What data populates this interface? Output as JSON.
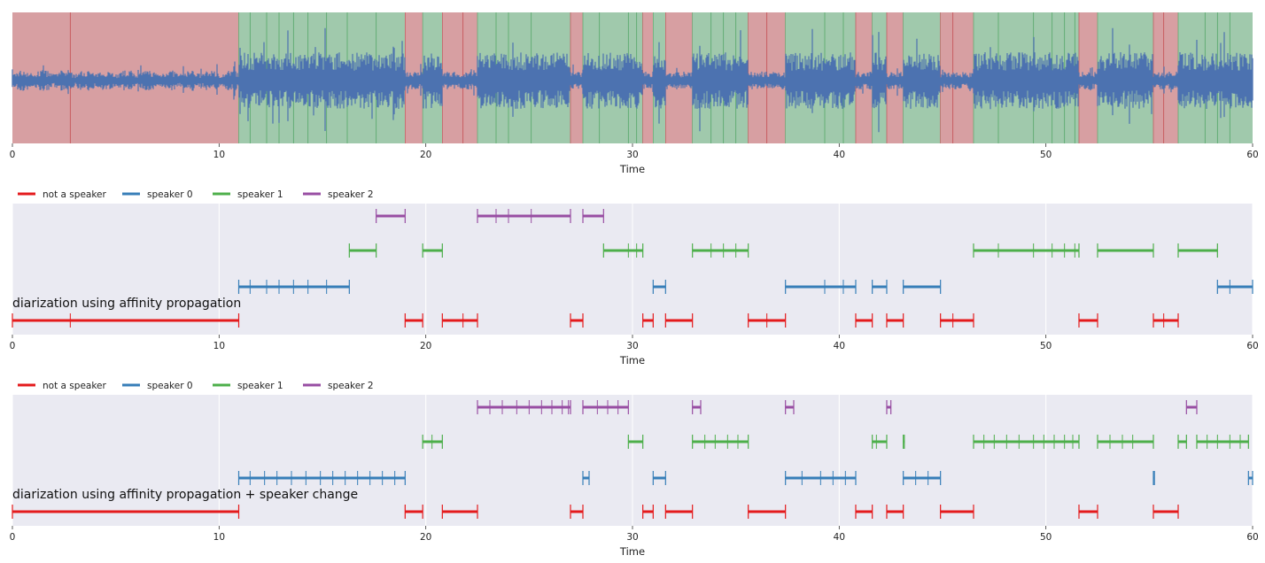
{
  "chart_data": [
    {
      "type": "waveform-segments",
      "xlabel": "Time",
      "xlim": [
        0,
        60
      ],
      "xticks": [
        0,
        10,
        20,
        30,
        40,
        50,
        60
      ],
      "colors": {
        "nonspeech": "#d79fa2",
        "speech": "#a0c9ac",
        "wave": "#4c72b0",
        "nonspeech_line": "#c44e52",
        "speech_line": "#55a868"
      },
      "nonspeech_segments": [
        [
          0,
          10.95
        ],
        [
          19.0,
          19.85
        ],
        [
          20.8,
          22.5
        ],
        [
          27.0,
          27.6
        ],
        [
          30.5,
          31.0
        ],
        [
          31.6,
          32.9
        ],
        [
          35.6,
          37.4
        ],
        [
          40.8,
          41.6
        ],
        [
          42.3,
          43.1
        ],
        [
          44.9,
          46.5
        ],
        [
          51.6,
          52.5
        ],
        [
          55.2,
          56.4
        ]
      ],
      "speech_segments": [
        [
          10.95,
          19.0
        ],
        [
          19.85,
          20.8
        ],
        [
          22.5,
          27.0
        ],
        [
          27.6,
          30.5
        ],
        [
          31.0,
          31.6
        ],
        [
          32.9,
          35.6
        ],
        [
          37.4,
          40.8
        ],
        [
          41.6,
          42.3
        ],
        [
          43.1,
          44.9
        ],
        [
          46.5,
          51.6
        ],
        [
          52.5,
          55.2
        ],
        [
          56.4,
          60
        ]
      ],
      "boundaries": [
        2.8,
        11.5,
        12.3,
        12.9,
        13.6,
        14.3,
        15.2,
        16.2,
        17.6,
        21.8,
        23.4,
        24.0,
        25.1,
        28.4,
        29.8,
        30.2,
        33.8,
        34.4,
        35.0,
        36.5,
        39.3,
        40.2,
        45.5,
        47.7,
        49.4,
        50.3,
        50.9,
        51.4,
        55.7,
        57.7,
        58.3,
        58.9
      ]
    },
    {
      "type": "timeline",
      "annotation": "diarization using affinity propagation",
      "xlabel": "Time",
      "xlim": [
        0,
        60
      ],
      "xticks": [
        0,
        10,
        20,
        30,
        40,
        50,
        60
      ],
      "legend": [
        "not a speaker",
        "speaker 0",
        "speaker 1",
        "speaker 2"
      ],
      "colors": [
        "#e41a1c",
        "#377eb8",
        "#4daf4a",
        "#984ea3"
      ],
      "series": [
        {
          "name": "not a speaker",
          "segments": [
            [
              0,
              10.95
            ],
            [
              19.0,
              19.85
            ],
            [
              20.8,
              22.5
            ],
            [
              27.0,
              27.6
            ],
            [
              30.5,
              31.0
            ],
            [
              31.6,
              32.9
            ],
            [
              35.6,
              37.4
            ],
            [
              40.8,
              41.6
            ],
            [
              42.3,
              43.1
            ],
            [
              44.9,
              46.5
            ],
            [
              51.6,
              52.5
            ],
            [
              55.2,
              56.4
            ]
          ],
          "ticks": [
            2.8,
            21.8,
            36.5,
            45.5,
            55.7
          ]
        },
        {
          "name": "speaker 0",
          "segments": [
            [
              10.95,
              16.3
            ],
            [
              31.0,
              31.6
            ],
            [
              37.4,
              40.8
            ],
            [
              41.6,
              42.3
            ],
            [
              43.1,
              44.9
            ],
            [
              58.3,
              60
            ]
          ],
          "ticks": [
            11.5,
            12.3,
            12.9,
            13.6,
            14.3,
            15.2,
            39.3,
            40.2,
            58.9
          ]
        },
        {
          "name": "speaker 1",
          "segments": [
            [
              16.3,
              17.6
            ],
            [
              19.85,
              20.8
            ],
            [
              28.6,
              30.5
            ],
            [
              32.9,
              35.6
            ],
            [
              46.5,
              51.6
            ],
            [
              52.5,
              55.2
            ],
            [
              56.4,
              58.3
            ]
          ],
          "ticks": [
            29.8,
            30.2,
            33.8,
            34.4,
            35.0,
            47.7,
            49.4,
            50.3,
            50.9,
            51.4
          ]
        },
        {
          "name": "speaker 2",
          "segments": [
            [
              17.6,
              19.0
            ],
            [
              22.5,
              27.0
            ],
            [
              27.6,
              28.6
            ]
          ],
          "ticks": [
            23.4,
            24.0,
            25.1
          ]
        }
      ]
    },
    {
      "type": "timeline",
      "annotation": "diarization using affinity propagation + speaker change",
      "xlabel": "Time",
      "xlim": [
        0,
        60
      ],
      "xticks": [
        0,
        10,
        20,
        30,
        40,
        50,
        60
      ],
      "legend": [
        "not a speaker",
        "speaker 0",
        "speaker 1",
        "speaker 2"
      ],
      "colors": [
        "#e41a1c",
        "#377eb8",
        "#4daf4a",
        "#984ea3"
      ],
      "series": [
        {
          "name": "not a speaker",
          "segments": [
            [
              0,
              10.95
            ],
            [
              19.0,
              19.85
            ],
            [
              20.8,
              22.5
            ],
            [
              27.0,
              27.6
            ],
            [
              30.5,
              31.0
            ],
            [
              31.6,
              32.9
            ],
            [
              35.6,
              37.4
            ],
            [
              40.8,
              41.6
            ],
            [
              42.3,
              43.1
            ],
            [
              44.9,
              46.5
            ],
            [
              51.6,
              52.5
            ],
            [
              55.2,
              56.4
            ]
          ],
          "ticks": []
        },
        {
          "name": "speaker 0",
          "segments": [
            [
              10.95,
              19.0
            ],
            [
              27.6,
              27.9
            ],
            [
              31.0,
              31.6
            ],
            [
              37.4,
              40.8
            ],
            [
              43.1,
              44.9
            ],
            [
              55.2,
              55.25
            ],
            [
              59.8,
              60
            ]
          ],
          "ticks": [
            11.5,
            12.2,
            12.8,
            13.5,
            14.2,
            14.9,
            15.5,
            16.1,
            16.7,
            17.3,
            17.9,
            18.5,
            38.2,
            39.1,
            39.7,
            40.3,
            43.7,
            44.3
          ]
        },
        {
          "name": "speaker 1",
          "segments": [
            [
              19.85,
              20.8
            ],
            [
              29.8,
              30.5
            ],
            [
              32.9,
              35.6
            ],
            [
              41.6,
              42.3
            ],
            [
              43.1,
              43.15
            ],
            [
              46.5,
              51.6
            ],
            [
              52.5,
              55.2
            ],
            [
              56.4,
              56.8
            ],
            [
              57.3,
              59.8
            ]
          ],
          "ticks": [
            20.3,
            33.5,
            34.0,
            34.6,
            35.1,
            41.8,
            47.0,
            47.5,
            48.1,
            48.7,
            49.4,
            49.9,
            50.4,
            50.9,
            51.3,
            53.1,
            53.7,
            54.2,
            57.8,
            58.3,
            58.9,
            59.4
          ]
        },
        {
          "name": "speaker 2",
          "segments": [
            [
              22.5,
              27.0
            ],
            [
              27.6,
              29.8
            ],
            [
              32.9,
              33.3
            ],
            [
              37.4,
              37.8
            ],
            [
              42.3,
              42.5
            ],
            [
              56.8,
              57.3
            ]
          ],
          "ticks": [
            23.1,
            23.7,
            24.4,
            25.0,
            25.6,
            26.1,
            26.6,
            26.9,
            28.3,
            28.8,
            29.3
          ]
        }
      ]
    }
  ]
}
